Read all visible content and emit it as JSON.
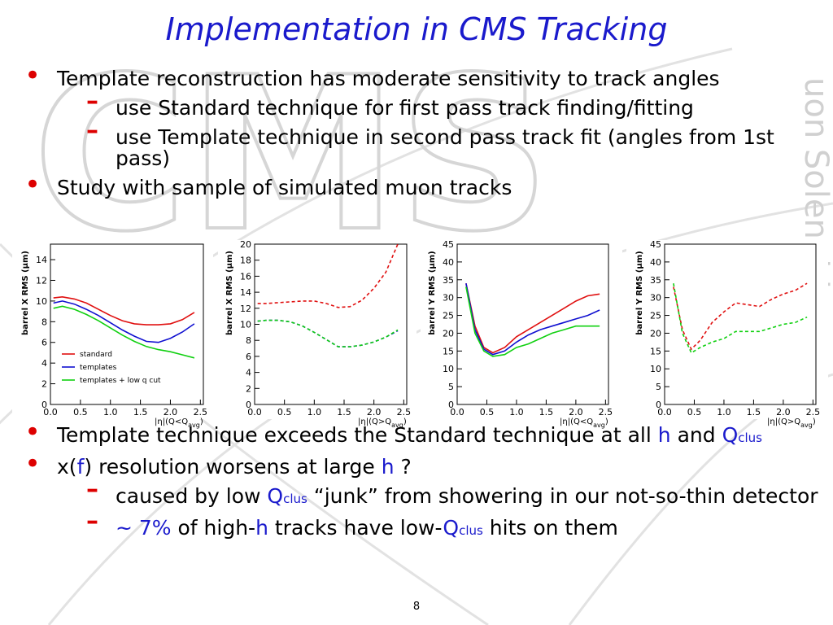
{
  "title": "Implementation in CMS Tracking",
  "watermark": "CMS",
  "watermark_side": "uon Solenoid",
  "top_bullets": [
    {
      "runs": [
        {
          "text": "Template reconstruction has moderate sensitivity to track angles"
        }
      ],
      "subitems": [
        {
          "runs": [
            {
              "text": "use Standard technique  for first pass track finding/fitting"
            }
          ]
        },
        {
          "runs": [
            {
              "text": "use Template technique in second pass track fit (angles from 1st pass)"
            }
          ]
        }
      ]
    },
    {
      "runs": [
        {
          "text": "Study with sample of simulated muon tracks"
        }
      ],
      "subitems": []
    }
  ],
  "bottom_bullets": [
    {
      "runs": [
        {
          "text": "Template technique exceeds the Standard technique at all "
        },
        {
          "text": "h",
          "color": "#1a1acc"
        },
        {
          "text": " and "
        },
        {
          "text": "Q",
          "color": "#1a1acc"
        },
        {
          "text": "clus",
          "color": "#1a1acc",
          "sub": true
        }
      ],
      "subitems": []
    },
    {
      "runs": [
        {
          "text": "x("
        },
        {
          "text": "f",
          "color": "#1a1acc"
        },
        {
          "text": ") resolution worsens at large "
        },
        {
          "text": "h",
          "color": "#1a1acc"
        },
        {
          "text": " ?"
        }
      ],
      "subitems": [
        {
          "runs": [
            {
              "text": "caused by low "
            },
            {
              "text": "Q",
              "color": "#1a1acc"
            },
            {
              "text": "clus",
              "color": "#1a1acc",
              "sub": true
            },
            {
              "text": " “junk” from showering in our not-so-thin detector"
            }
          ]
        },
        {
          "runs": [
            {
              "text": "~ 7%",
              "color": "#1a1acc"
            },
            {
              "text": " of high-"
            },
            {
              "text": "h",
              "color": "#1a1acc"
            },
            {
              "text": " tracks have low-"
            },
            {
              "text": "Q",
              "color": "#1a1acc"
            },
            {
              "text": "clus",
              "color": "#1a1acc",
              "sub": true
            },
            {
              "text": " hits on them"
            }
          ]
        }
      ]
    }
  ],
  "page_number": "8",
  "chart_data": [
    {
      "type": "line",
      "ylabel": "barrel X RMS (μm)",
      "xlabel": "|η|(Q<Q",
      "xlabel_sub": "avg",
      "xlabel_end": ")",
      "dashed": false,
      "x": [
        0.05,
        0.2,
        0.4,
        0.6,
        0.8,
        1.0,
        1.2,
        1.4,
        1.6,
        1.8,
        2.0,
        2.2,
        2.4
      ],
      "xlim": [
        0,
        2.55
      ],
      "ylim": [
        0,
        15.5
      ],
      "xticks": [
        {
          "value": 0,
          "label": "0.0"
        },
        {
          "value": 0.5,
          "label": "0.5"
        },
        {
          "value": 1,
          "label": "1.0"
        },
        {
          "value": 1.5,
          "label": "1.5"
        },
        {
          "value": 2,
          "label": "2.0"
        },
        {
          "value": 2.5,
          "label": "2.5"
        }
      ],
      "yticks": [
        0,
        2,
        4,
        6,
        8,
        10,
        12,
        14
      ],
      "legend": "lower left",
      "series": [
        {
          "name": "standard",
          "color": "#e01010",
          "values": [
            10.3,
            10.4,
            10.2,
            9.8,
            9.2,
            8.6,
            8.1,
            7.8,
            7.7,
            7.7,
            7.8,
            8.2,
            8.9
          ]
        },
        {
          "name": "templates",
          "color": "#1010d0",
          "values": [
            9.8,
            10.0,
            9.7,
            9.2,
            8.6,
            7.9,
            7.2,
            6.6,
            6.1,
            6.0,
            6.4,
            7.0,
            7.8
          ]
        },
        {
          "name": "templates + low q cut",
          "color": "#10d010",
          "values": [
            9.3,
            9.5,
            9.2,
            8.7,
            8.1,
            7.4,
            6.7,
            6.1,
            5.6,
            5.3,
            5.1,
            4.8,
            4.5
          ]
        }
      ]
    },
    {
      "type": "line",
      "ylabel": "barrel X RMS (μm)",
      "xlabel": "|η|(Q>Q",
      "xlabel_sub": "avg",
      "xlabel_end": ")",
      "dashed": true,
      "x": [
        0.05,
        0.2,
        0.4,
        0.6,
        0.8,
        1.0,
        1.2,
        1.4,
        1.6,
        1.8,
        2.0,
        2.2,
        2.4
      ],
      "xlim": [
        0,
        2.55
      ],
      "ylim": [
        0,
        20
      ],
      "xticks": [
        {
          "value": 0,
          "label": "0.0"
        },
        {
          "value": 0.5,
          "label": "0.5"
        },
        {
          "value": 1,
          "label": "1.0"
        },
        {
          "value": 1.5,
          "label": "1.5"
        },
        {
          "value": 2,
          "label": "2.0"
        },
        {
          "value": 2.5,
          "label": "2.5"
        }
      ],
      "yticks": [
        0,
        2,
        4,
        6,
        8,
        10,
        12,
        14,
        16,
        18,
        20
      ],
      "series": [
        {
          "color": "#e01010",
          "values": [
            12.6,
            12.6,
            12.7,
            12.8,
            12.9,
            12.9,
            12.6,
            12.1,
            12.2,
            13.0,
            14.5,
            16.5,
            20
          ]
        },
        {
          "color": "#1010d0",
          "values": [
            10.4,
            10.5,
            10.5,
            10.3,
            9.8,
            9.0,
            8.1,
            7.2,
            7.2,
            7.4,
            7.8,
            8.4,
            9.2
          ]
        },
        {
          "color": "#10d010",
          "values": [
            10.4,
            10.5,
            10.5,
            10.3,
            9.8,
            9.0,
            8.1,
            7.2,
            7.2,
            7.4,
            7.8,
            8.4,
            9.3
          ]
        }
      ]
    },
    {
      "type": "line",
      "ylabel": "barrel Y RMS (μm)",
      "xlabel": "|η|(Q<Q",
      "xlabel_sub": "avg",
      "xlabel_end": ")",
      "dashed": false,
      "x": [
        0.15,
        0.3,
        0.45,
        0.6,
        0.8,
        1.0,
        1.2,
        1.4,
        1.6,
        1.8,
        2.0,
        2.2,
        2.4
      ],
      "xlim": [
        0,
        2.55
      ],
      "ylim": [
        0,
        45
      ],
      "xticks": [
        {
          "value": 0,
          "label": "0.0"
        },
        {
          "value": 0.5,
          "label": "0.5"
        },
        {
          "value": 1,
          "label": "1.0"
        },
        {
          "value": 1.5,
          "label": "1.5"
        },
        {
          "value": 2,
          "label": "2.0"
        },
        {
          "value": 2.5,
          "label": "2.5"
        }
      ],
      "yticks": [
        0,
        5,
        10,
        15,
        20,
        25,
        30,
        35,
        40,
        45
      ],
      "series": [
        {
          "color": "#e01010",
          "values": [
            34,
            22,
            16,
            14.5,
            16,
            19,
            21,
            23,
            25,
            27,
            29,
            30.5,
            31
          ]
        },
        {
          "color": "#1010d0",
          "values": [
            34,
            21,
            15.5,
            14,
            15,
            17.5,
            19.5,
            21,
            22,
            23,
            24,
            25,
            26.5
          ]
        },
        {
          "color": "#10d010",
          "values": [
            33,
            20,
            15,
            13.5,
            14,
            16,
            17,
            18.5,
            20,
            21,
            22,
            22,
            22
          ]
        }
      ]
    },
    {
      "type": "line",
      "ylabel": "barrel Y RMS (μm)",
      "xlabel": "|η|(Q>Q",
      "xlabel_sub": "avg",
      "xlabel_end": ")",
      "dashed": true,
      "x": [
        0.15,
        0.3,
        0.45,
        0.6,
        0.8,
        1.0,
        1.2,
        1.4,
        1.6,
        1.8,
        2.0,
        2.2,
        2.4
      ],
      "xlim": [
        0,
        2.55
      ],
      "ylim": [
        0,
        45
      ],
      "xticks": [
        {
          "value": 0,
          "label": "0.0"
        },
        {
          "value": 0.5,
          "label": "0.5"
        },
        {
          "value": 1,
          "label": "1.0"
        },
        {
          "value": 1.5,
          "label": "1.5"
        },
        {
          "value": 2,
          "label": "2.0"
        },
        {
          "value": 2.5,
          "label": "2.5"
        }
      ],
      "yticks": [
        0,
        5,
        10,
        15,
        20,
        25,
        30,
        35,
        40,
        45
      ],
      "series": [
        {
          "color": "#e01010",
          "values": [
            33,
            21,
            15.5,
            18,
            23,
            26,
            28.5,
            28,
            27.5,
            29.5,
            31,
            32,
            34
          ]
        },
        {
          "color": "#10d010",
          "values": [
            34,
            20,
            14.5,
            16,
            17.5,
            18.5,
            20.5,
            20.5,
            20.5,
            21.5,
            22.5,
            23,
            24.5
          ]
        }
      ]
    }
  ]
}
